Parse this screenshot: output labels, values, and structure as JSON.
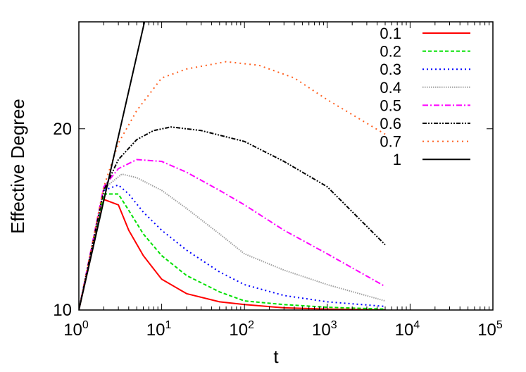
{
  "chart_data": {
    "type": "line",
    "title": "",
    "xlabel": "t",
    "ylabel": "Effective Degree",
    "xscale": "log",
    "xlim": [
      1,
      100000
    ],
    "ylim": [
      10,
      25.9
    ],
    "xticks": [
      {
        "value": 1,
        "base": "10",
        "exp": "0"
      },
      {
        "value": 10,
        "base": "10",
        "exp": "1"
      },
      {
        "value": 100,
        "base": "10",
        "exp": "2"
      },
      {
        "value": 1000,
        "base": "10",
        "exp": "3"
      },
      {
        "value": 10000,
        "base": "10",
        "exp": "4"
      },
      {
        "value": 100000,
        "base": "10",
        "exp": "5"
      }
    ],
    "yticks": [
      {
        "value": 10,
        "label": "10"
      },
      {
        "value": 20,
        "label": "20"
      }
    ],
    "grid": false,
    "legend_position": "top-right",
    "series": [
      {
        "name": "0.1",
        "color": "#ff0000",
        "dash": "",
        "x": [
          1,
          2,
          3,
          4,
          6,
          10,
          20,
          50,
          100,
          300,
          1000,
          5000
        ],
        "y": [
          10,
          16.1,
          15.8,
          14.4,
          13.0,
          11.7,
          10.9,
          10.45,
          10.3,
          10.12,
          10.05,
          10.0
        ]
      },
      {
        "name": "0.2",
        "color": "#00e000",
        "dash": "5,3",
        "x": [
          1,
          2,
          3,
          4,
          6,
          10,
          20,
          50,
          100,
          300,
          1000,
          5000
        ],
        "y": [
          10,
          16.4,
          16.4,
          15.5,
          14.2,
          13.0,
          11.9,
          11.0,
          10.5,
          10.3,
          10.15,
          10.05
        ]
      },
      {
        "name": "0.3",
        "color": "#0000ff",
        "dash": "2,4",
        "x": [
          1,
          2,
          3,
          4,
          6,
          10,
          20,
          50,
          100,
          300,
          1000,
          5000
        ],
        "y": [
          10,
          16.6,
          16.9,
          16.4,
          15.4,
          14.4,
          13.3,
          12.1,
          11.4,
          10.8,
          10.45,
          10.2
        ]
      },
      {
        "name": "0.4",
        "color": "#a0a0a0",
        "dash": "1.5,1.5",
        "x": [
          1,
          2,
          3.3,
          5,
          10,
          20,
          50,
          100,
          300,
          1000,
          5000
        ],
        "y": [
          10,
          16.7,
          17.5,
          17.3,
          16.6,
          15.6,
          14.2,
          13.1,
          12.2,
          11.4,
          10.5
        ]
      },
      {
        "name": "0.5",
        "color": "#ff00ff",
        "dash": "8,3,2,3",
        "x": [
          1,
          2,
          3,
          5,
          10,
          20,
          50,
          100,
          300,
          1000,
          5000
        ],
        "y": [
          10,
          16.8,
          17.8,
          18.3,
          18.2,
          17.6,
          16.6,
          15.8,
          14.4,
          13.1,
          11.3
        ]
      },
      {
        "name": "0.6",
        "color": "#000000",
        "dash": "6,2,2,2,2,2",
        "x": [
          1,
          2,
          3,
          5,
          8,
          13,
          30,
          100,
          300,
          1000,
          5000
        ],
        "y": [
          10,
          16.6,
          18.3,
          19.4,
          19.9,
          20.1,
          19.9,
          19.3,
          18.2,
          16.8,
          13.6
        ]
      },
      {
        "name": "0.7",
        "color": "#ff6020",
        "dash": "2,5",
        "x": [
          1,
          2,
          3,
          5,
          10,
          20,
          60,
          150,
          400,
          1000,
          5000
        ],
        "y": [
          10,
          16.8,
          19.2,
          21.0,
          22.8,
          23.3,
          23.7,
          23.5,
          22.8,
          21.6,
          19.7
        ]
      },
      {
        "name": "1",
        "color": "#000000",
        "dash": "",
        "x": [
          1,
          6.2
        ],
        "y": [
          10,
          25.9
        ]
      }
    ]
  }
}
